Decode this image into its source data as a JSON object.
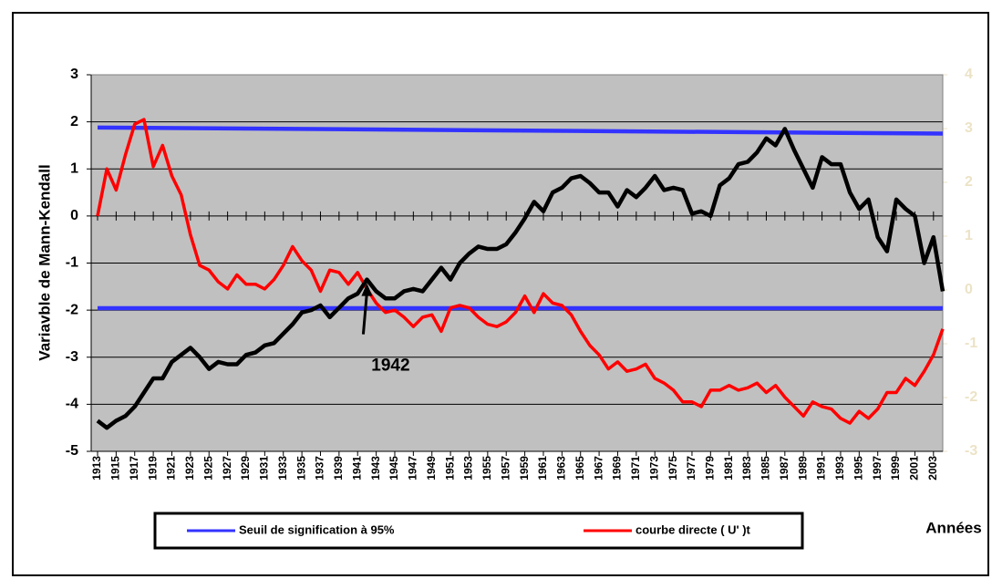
{
  "chart_data": {
    "type": "line",
    "y_label": "Variavble  de Mann-Kendall",
    "x_label": "Années",
    "annotation": {
      "text": "1942",
      "x": 1942,
      "y": -1.35
    },
    "x": [
      1913,
      1914,
      1915,
      1916,
      1917,
      1918,
      1919,
      1920,
      1921,
      1922,
      1923,
      1924,
      1925,
      1926,
      1927,
      1928,
      1929,
      1930,
      1931,
      1932,
      1933,
      1934,
      1935,
      1936,
      1937,
      1938,
      1939,
      1940,
      1941,
      1942,
      1943,
      1944,
      1945,
      1946,
      1947,
      1948,
      1949,
      1950,
      1951,
      1952,
      1953,
      1954,
      1955,
      1956,
      1957,
      1958,
      1959,
      1960,
      1961,
      1962,
      1963,
      1964,
      1965,
      1966,
      1967,
      1968,
      1969,
      1970,
      1971,
      1972,
      1973,
      1974,
      1975,
      1976,
      1977,
      1978,
      1979,
      1980,
      1981,
      1982,
      1983,
      1984,
      1985,
      1986,
      1987,
      1988,
      1989,
      1990,
      1991,
      1992,
      1993,
      1994,
      1995,
      1996,
      1997,
      1998,
      1999,
      2000,
      2001,
      2002,
      2003,
      2004
    ],
    "series": [
      {
        "name": "Seuil de signification à 95%",
        "color": "#3333ff",
        "x": [
          1913,
          2004
        ],
        "values": [
          1.88,
          1.75
        ]
      },
      {
        "color": "#3333ff",
        "x": [
          1913,
          2004
        ],
        "values": [
          -1.96,
          -1.96
        ]
      },
      {
        "name": "courbe directe ( U' )t",
        "color": "#ff0000",
        "values": [
          0,
          1.0,
          0.55,
          1.3,
          1.95,
          2.05,
          1.05,
          1.5,
          0.85,
          0.45,
          -0.4,
          -1.05,
          -1.15,
          -1.4,
          -1.55,
          -1.25,
          -1.45,
          -1.45,
          -1.55,
          -1.35,
          -1.05,
          -0.65,
          -0.95,
          -1.15,
          -1.6,
          -1.15,
          -1.2,
          -1.45,
          -1.2,
          -1.55,
          -1.85,
          -2.05,
          -2.0,
          -2.15,
          -2.35,
          -2.15,
          -2.1,
          -2.45,
          -1.95,
          -1.9,
          -1.95,
          -2.15,
          -2.3,
          -2.35,
          -2.25,
          -2.05,
          -1.7,
          -2.05,
          -1.65,
          -1.85,
          -1.9,
          -2.1,
          -2.45,
          -2.75,
          -2.95,
          -3.25,
          -3.1,
          -3.3,
          -3.25,
          -3.15,
          -3.45,
          -3.55,
          -3.7,
          -3.95,
          -3.95,
          -4.05,
          -3.7,
          -3.7,
          -3.6,
          -3.7,
          -3.65,
          -3.55,
          -3.75,
          -3.6,
          -3.85,
          -4.05,
          -4.25,
          -3.95,
          -4.05,
          -4.1,
          -4.3,
          -4.4,
          -4.15,
          -4.3,
          -4.1,
          -3.75,
          -3.75,
          -3.45,
          -3.6,
          -3.3,
          -2.95,
          -2.4
        ]
      },
      {
        "color": "#000000",
        "values": [
          -4.35,
          -4.5,
          -4.35,
          -4.25,
          -4.05,
          -3.75,
          -3.45,
          -3.45,
          -3.1,
          -2.95,
          -2.8,
          -3.0,
          -3.25,
          -3.1,
          -3.15,
          -3.15,
          -2.95,
          -2.9,
          -2.75,
          -2.7,
          -2.5,
          -2.3,
          -2.05,
          -2.0,
          -1.9,
          -2.15,
          -1.95,
          -1.75,
          -1.65,
          -1.35,
          -1.6,
          -1.75,
          -1.75,
          -1.6,
          -1.55,
          -1.6,
          -1.35,
          -1.1,
          -1.35,
          -1.0,
          -0.8,
          -0.65,
          -0.7,
          -0.7,
          -0.6,
          -0.35,
          -0.05,
          0.3,
          0.1,
          0.5,
          0.6,
          0.8,
          0.85,
          0.7,
          0.5,
          0.5,
          0.2,
          0.55,
          0.4,
          0.6,
          0.85,
          0.55,
          0.6,
          0.55,
          0.05,
          0.1,
          0.0,
          0.65,
          0.8,
          1.1,
          1.15,
          1.35,
          1.65,
          1.5,
          1.85,
          1.4,
          1.0,
          0.6,
          1.25,
          1.1,
          1.1,
          0.5,
          0.15,
          0.35,
          -0.45,
          -0.75,
          0.35,
          0.15,
          0.0,
          -1.0,
          -0.45,
          -1.6
        ]
      }
    ],
    "xlim": [
      1913,
      2004
    ],
    "xticks": [
      1913,
      1915,
      1917,
      1919,
      1921,
      1923,
      1925,
      1927,
      1929,
      1931,
      1933,
      1935,
      1937,
      1939,
      1941,
      1943,
      1945,
      1947,
      1949,
      1951,
      1953,
      1955,
      1957,
      1959,
      1961,
      1963,
      1965,
      1967,
      1969,
      1971,
      1973,
      1975,
      1977,
      1979,
      1981,
      1983,
      1985,
      1987,
      1989,
      1991,
      1993,
      1995,
      1997,
      1999,
      2001,
      2003
    ],
    "ylim": [
      -5,
      3
    ],
    "yticks": [
      -5,
      -4,
      -3,
      -2,
      -1,
      0,
      1,
      2,
      3
    ],
    "y2lim": [
      -3,
      4
    ],
    "y2ticks": [
      -3,
      -2,
      -1,
      0,
      1,
      2,
      3,
      4
    ],
    "y2_color": "#ece3c6",
    "grid": true,
    "plot_background": "#c0c0c0"
  }
}
